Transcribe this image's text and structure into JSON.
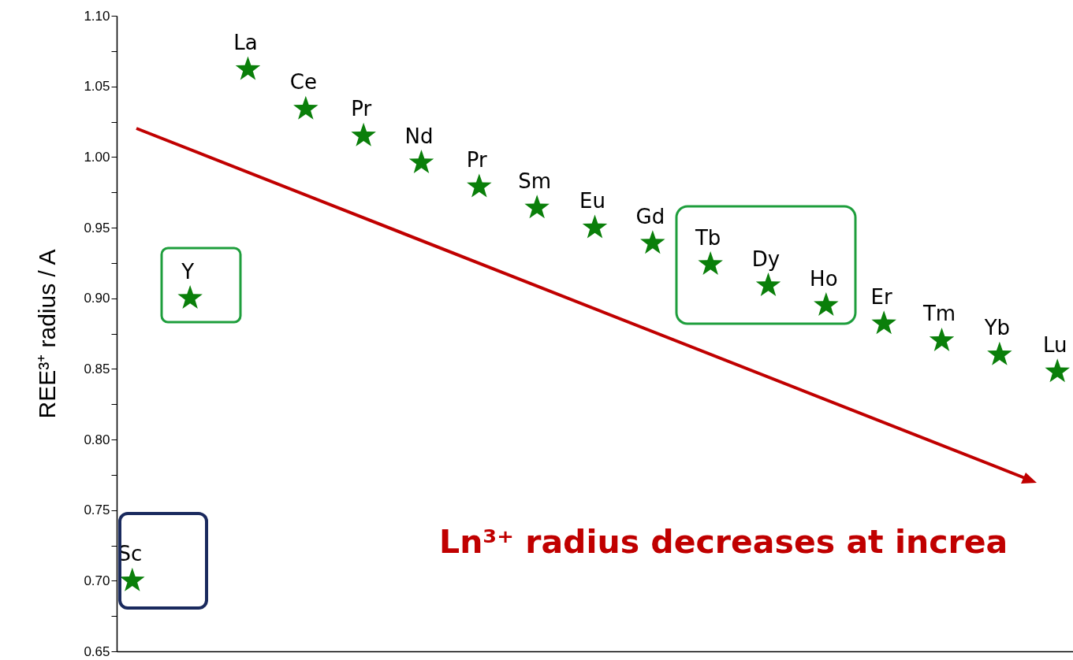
{
  "chart_data": {
    "type": "scatter",
    "ylabel": "REE³⁺ radius / A",
    "categories": [
      null,
      null,
      null,
      null,
      null,
      null,
      null,
      null,
      null,
      null,
      null,
      null,
      null,
      null,
      null,
      null,
      null
    ],
    "series": [
      {
        "name": "Sc",
        "color": "#0a7f0a",
        "values": [
          0.7,
          null,
          null,
          null,
          null,
          null,
          null,
          null,
          null,
          null,
          null,
          null,
          null,
          null,
          null,
          null,
          null
        ]
      },
      {
        "name": "Y",
        "color": "#0a7f0a",
        "values": [
          null,
          0.9,
          null,
          null,
          null,
          null,
          null,
          null,
          null,
          null,
          null,
          null,
          null,
          null,
          null,
          null,
          null
        ]
      },
      {
        "name": "La",
        "color": "#0a7f0a",
        "values": [
          null,
          null,
          1.062,
          null,
          null,
          null,
          null,
          null,
          null,
          null,
          null,
          null,
          null,
          null,
          null,
          null,
          null
        ]
      },
      {
        "name": "Ce",
        "color": "#0a7f0a",
        "values": [
          null,
          null,
          null,
          1.034,
          null,
          null,
          null,
          null,
          null,
          null,
          null,
          null,
          null,
          null,
          null,
          null,
          null
        ]
      },
      {
        "name": "Pr",
        "color": "#0a7f0a",
        "values": [
          null,
          null,
          null,
          null,
          1.015,
          null,
          null,
          null,
          null,
          null,
          null,
          null,
          null,
          null,
          null,
          null,
          null
        ]
      },
      {
        "name": "Nd",
        "color": "#0a7f0a",
        "values": [
          null,
          null,
          null,
          null,
          null,
          0.996,
          null,
          null,
          null,
          null,
          null,
          null,
          null,
          null,
          null,
          null,
          null
        ]
      },
      {
        "name": "Pr",
        "color": "#0a7f0a",
        "values": [
          null,
          null,
          null,
          null,
          null,
          null,
          0.979,
          null,
          null,
          null,
          null,
          null,
          null,
          null,
          null,
          null,
          null
        ]
      },
      {
        "name": "Sm",
        "color": "#0a7f0a",
        "values": [
          null,
          null,
          null,
          null,
          null,
          null,
          null,
          0.964,
          null,
          null,
          null,
          null,
          null,
          null,
          null,
          null,
          null
        ]
      },
      {
        "name": "Eu",
        "color": "#0a7f0a",
        "values": [
          null,
          null,
          null,
          null,
          null,
          null,
          null,
          null,
          0.95,
          null,
          null,
          null,
          null,
          null,
          null,
          null,
          null
        ]
      },
      {
        "name": "Gd",
        "color": "#0a7f0a",
        "values": [
          null,
          null,
          null,
          null,
          null,
          null,
          null,
          null,
          null,
          0.939,
          null,
          null,
          null,
          null,
          null,
          null,
          null
        ]
      },
      {
        "name": "Tb",
        "color": "#0a7f0a",
        "values": [
          null,
          null,
          null,
          null,
          null,
          null,
          null,
          null,
          null,
          null,
          0.924,
          null,
          null,
          null,
          null,
          null,
          null
        ]
      },
      {
        "name": "Dy",
        "color": "#0a7f0a",
        "values": [
          null,
          null,
          null,
          null,
          null,
          null,
          null,
          null,
          null,
          null,
          null,
          0.909,
          null,
          null,
          null,
          null,
          null
        ]
      },
      {
        "name": "Ho",
        "color": "#0a7f0a",
        "values": [
          null,
          null,
          null,
          null,
          null,
          null,
          null,
          null,
          null,
          null,
          null,
          null,
          0.895,
          null,
          null,
          null,
          null
        ]
      },
      {
        "name": "Er",
        "color": "#0a7f0a",
        "values": [
          null,
          null,
          null,
          null,
          null,
          null,
          null,
          null,
          null,
          null,
          null,
          null,
          null,
          0.882,
          null,
          null,
          null
        ]
      },
      {
        "name": "Tm",
        "color": "#0a7f0a",
        "values": [
          null,
          null,
          null,
          null,
          null,
          null,
          null,
          null,
          null,
          null,
          null,
          null,
          null,
          null,
          0.87,
          null,
          null
        ]
      },
      {
        "name": "Yb",
        "color": "#0a7f0a",
        "values": [
          null,
          null,
          null,
          null,
          null,
          null,
          null,
          null,
          null,
          null,
          null,
          null,
          null,
          null,
          null,
          0.86,
          null
        ]
      },
      {
        "name": "Lu",
        "color": "#0a7f0a",
        "values": [
          null,
          null,
          null,
          null,
          null,
          null,
          null,
          null,
          null,
          null,
          null,
          null,
          null,
          null,
          null,
          null,
          0.848
        ]
      }
    ],
    "ylim": [
      0.65,
      1.1
    ],
    "yticks": [
      0.65,
      {
        "value": 0.675,
        "label": null
      },
      {
        "value": 0.7,
        "label": "0.70"
      },
      {
        "value": 0.725,
        "label": null
      },
      0.75,
      {
        "value": 0.775,
        "label": null
      },
      {
        "value": 0.8,
        "label": "0.80"
      },
      {
        "value": 0.825,
        "label": null
      },
      0.85,
      {
        "value": 0.875,
        "label": null
      },
      {
        "value": 0.9,
        "label": "0.90"
      },
      {
        "value": 0.925,
        "label": null
      },
      0.95,
      {
        "value": 0.975,
        "label": null
      },
      {
        "value": 1.0,
        "label": "1.00"
      },
      {
        "value": 1.025,
        "label": null
      },
      1.05,
      {
        "value": 1.075,
        "label": null
      },
      {
        "value": 1.1,
        "label": "1.10"
      }
    ],
    "tick_labels": "y",
    "marker": "star",
    "grid": false,
    "annotations": [
      "Ln³⁺ radius decreases at increa"
    ]
  }
}
